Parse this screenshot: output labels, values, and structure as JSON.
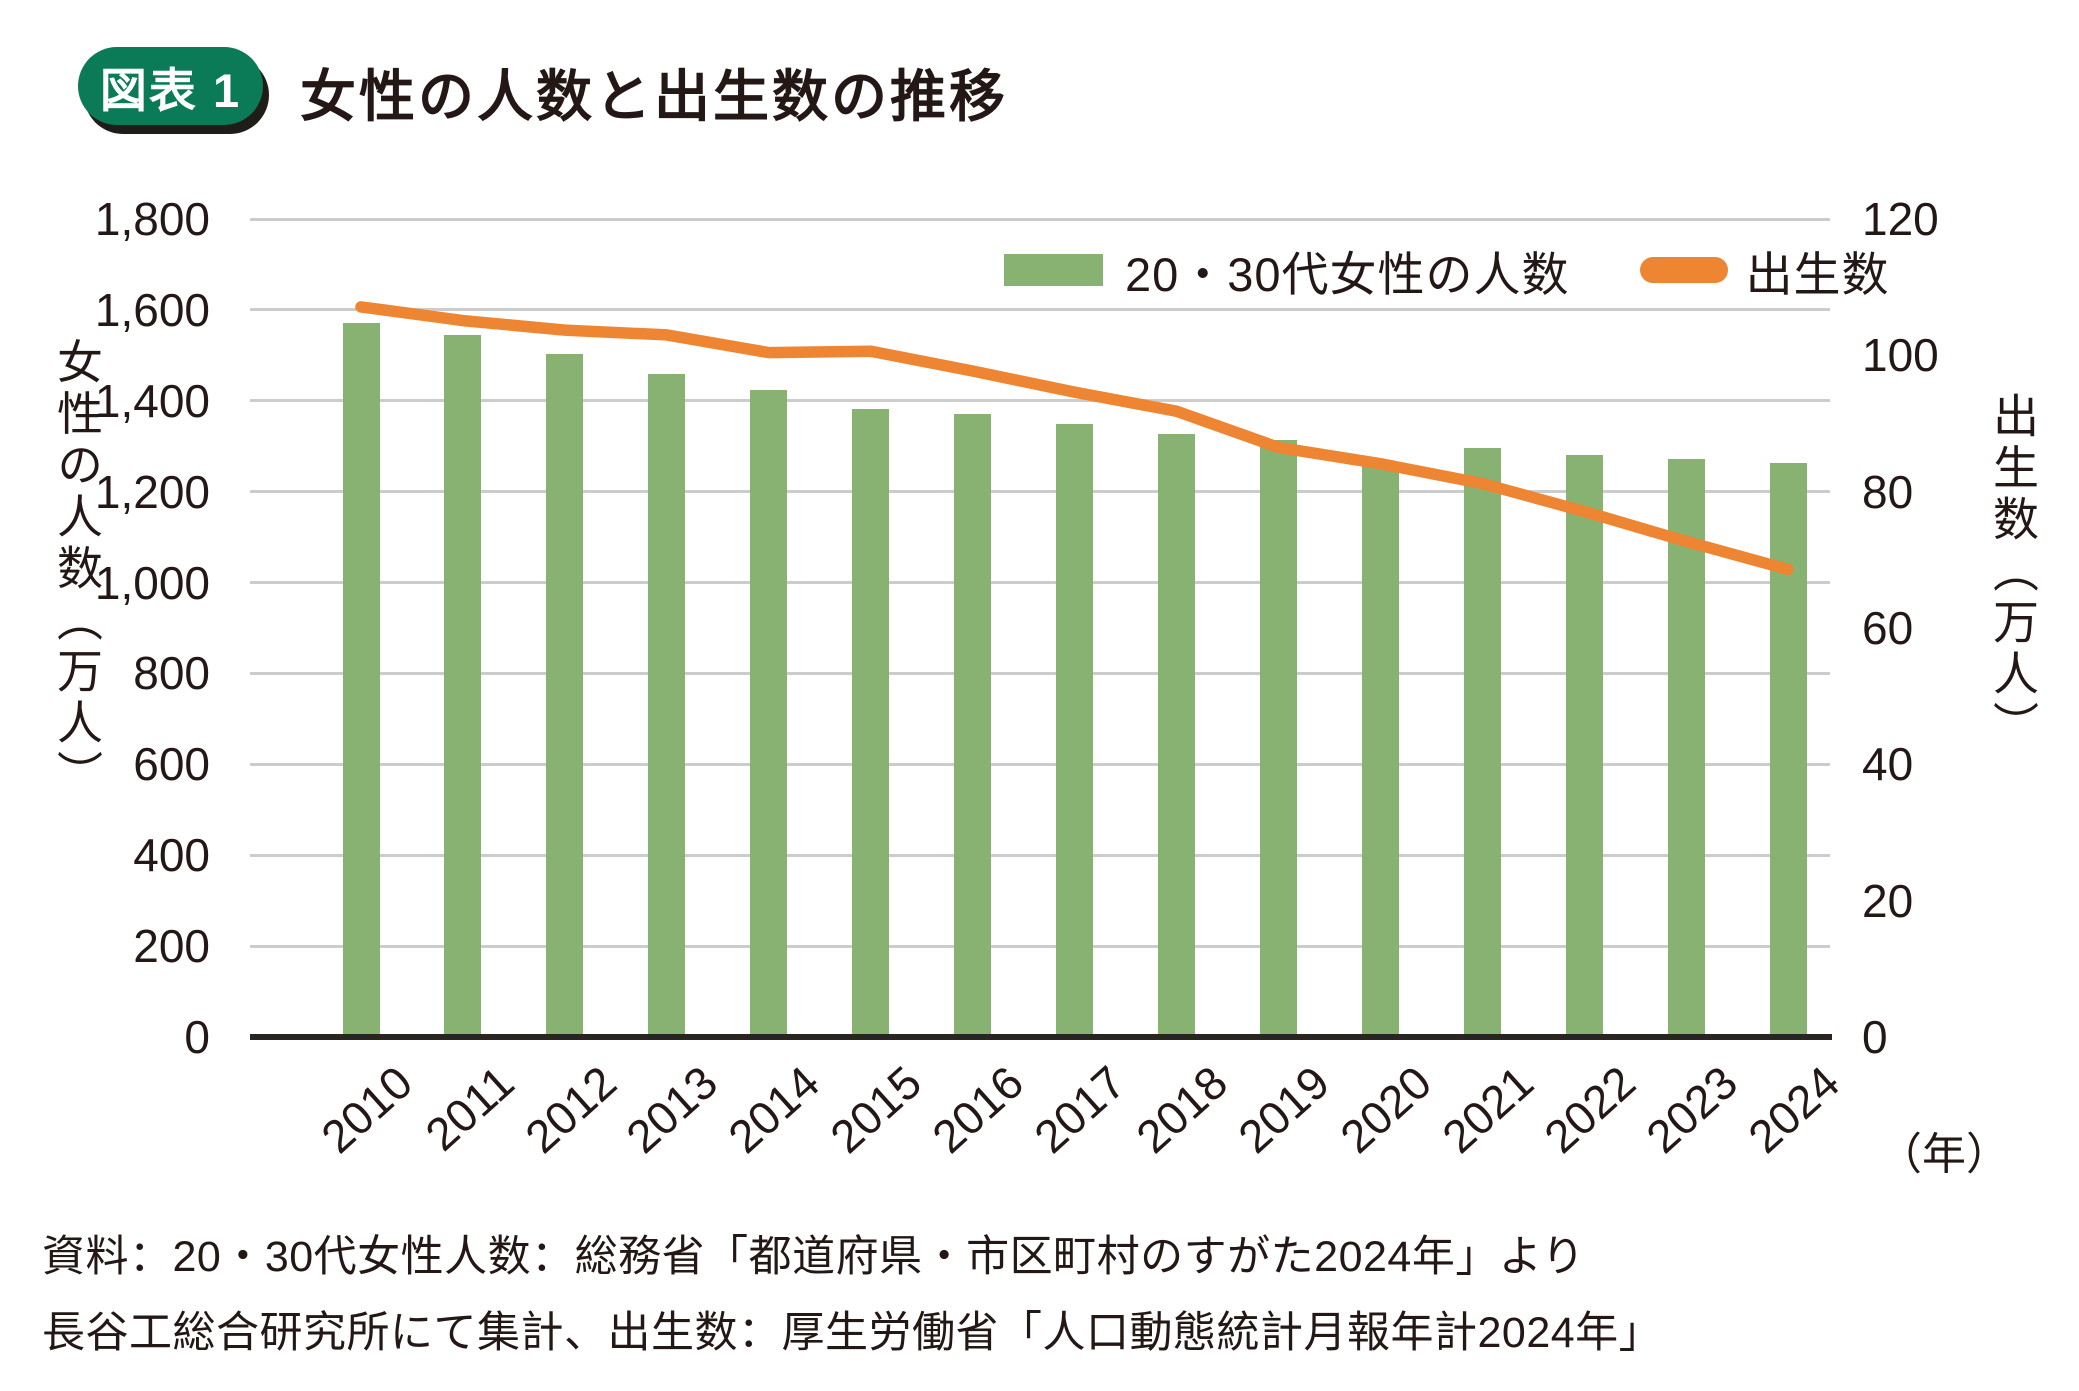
{
  "header": {
    "badge": "図表 1",
    "title": "女性の人数と出生数の推移"
  },
  "legend": {
    "bar_label": "20・30代女性の人数",
    "line_label": "出生数"
  },
  "axes": {
    "left": {
      "title": "女性の人数（万人）",
      "ticks": [
        "1,800",
        "1,600",
        "1,400",
        "1,200",
        "1,000",
        "800",
        "600",
        "400",
        "200",
        "0"
      ],
      "max": 1800
    },
    "right": {
      "title": "出生数（万人）",
      "ticks": [
        "120",
        "100",
        "80",
        "60",
        "40",
        "20",
        "0"
      ],
      "max": 120
    },
    "x_unit": "（年）"
  },
  "chart_data": {
    "type": "combo",
    "categories": [
      "2010",
      "2011",
      "2012",
      "2013",
      "2014",
      "2015",
      "2016",
      "2017",
      "2018",
      "2019",
      "2020",
      "2021",
      "2022",
      "2023",
      "2024"
    ],
    "series": [
      {
        "name": "20・30代女性の人数",
        "type": "bar",
        "axis": "left",
        "color": "#87b272",
        "values": [
          1572,
          1544,
          1503,
          1459,
          1423,
          1381,
          1370,
          1349,
          1328,
          1313,
          1258,
          1296,
          1280,
          1271,
          1263
        ]
      },
      {
        "name": "出生数",
        "type": "line",
        "axis": "right",
        "color": "#ed8533",
        "values": [
          107.1,
          105.1,
          103.7,
          103.0,
          100.4,
          100.6,
          97.7,
          94.6,
          91.8,
          86.5,
          84.1,
          81.2,
          77.1,
          72.7,
          68.6
        ]
      }
    ],
    "left_ylim": [
      0,
      1800
    ],
    "right_ylim": [
      0,
      120
    ],
    "grid": "horizontal",
    "legend_position": "top-right-inside"
  },
  "source": {
    "line1": "資料：20・30代女性人数：総務省「都道府県・市区町村のすがた2024年」より",
    "line2": "長谷工総合研究所にて集計、出生数：厚生労働省「人口動態統計月報年計2024年」"
  },
  "colors": {
    "bar": "#87b272",
    "line": "#ed8533",
    "badge": "#0a7b56",
    "badge_shadow": "#201c17",
    "text": "#231815",
    "gridline": "#cccccc",
    "axis_line": "#2b2522"
  }
}
